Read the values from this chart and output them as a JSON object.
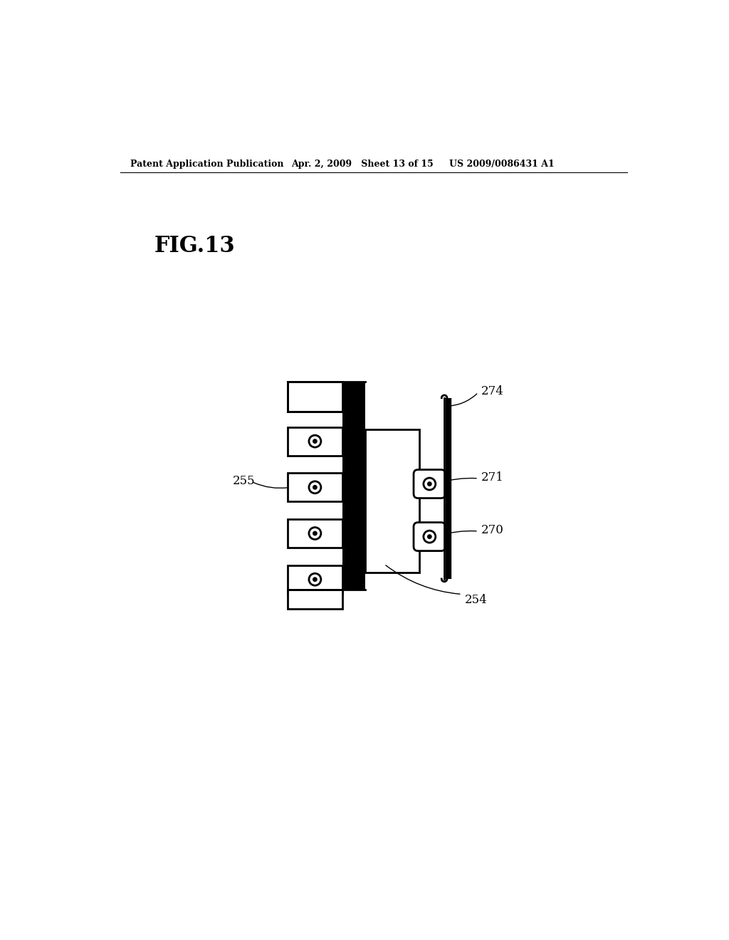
{
  "bg_color": "#ffffff",
  "title_text": "FIG.13",
  "header_left": "Patent Application Publication",
  "header_mid": "Apr. 2, 2009   Sheet 13 of 15",
  "header_right": "US 2009/0086431 A1",
  "label_255": "255",
  "label_274": "274",
  "label_271": "271",
  "label_270": "270",
  "label_254": "254",
  "line_lw": 2.0,
  "thick_lw": 3.5,
  "spine_lw": 3.5
}
